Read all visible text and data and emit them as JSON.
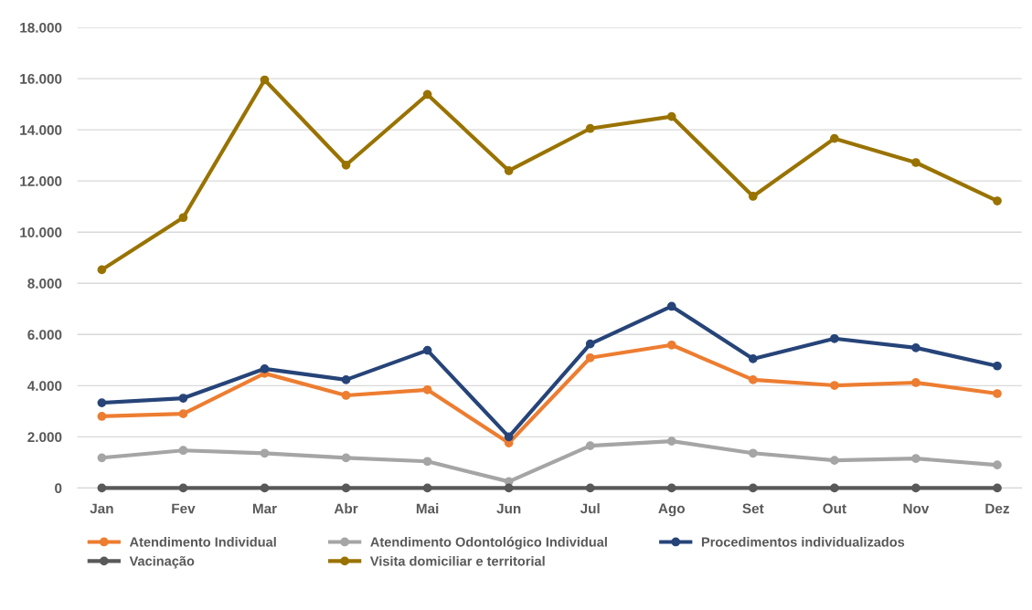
{
  "chart_data": {
    "type": "line",
    "categories": [
      "Jan",
      "Fev",
      "Mar",
      "Abr",
      "Mai",
      "Jun",
      "Jul",
      "Ago",
      "Set",
      "Out",
      "Nov",
      "Dez"
    ],
    "series": [
      {
        "name": "Atendimento Individual",
        "color": "#ed7d31",
        "values": [
          2800,
          2900,
          4480,
          3620,
          3840,
          1760,
          5090,
          5590,
          4230,
          4010,
          4120,
          3690
        ]
      },
      {
        "name": "Atendimento Odontológico Individual",
        "color": "#a5a5a5",
        "values": [
          1180,
          1470,
          1360,
          1180,
          1040,
          250,
          1650,
          1830,
          1360,
          1080,
          1150,
          900
        ]
      },
      {
        "name": "Procedimentos individualizados",
        "color": "#264478",
        "values": [
          3330,
          3510,
          4660,
          4230,
          5380,
          2000,
          5630,
          7100,
          5050,
          5840,
          5480,
          4770
        ]
      },
      {
        "name": "Vacinação",
        "color": "#595959",
        "values": [
          0,
          0,
          0,
          0,
          0,
          0,
          0,
          0,
          0,
          0,
          0,
          0
        ]
      },
      {
        "name": "Visita domiciliar e territorial",
        "color": "#997300",
        "values": [
          8530,
          10570,
          15950,
          12620,
          15380,
          12400,
          14050,
          14520,
          11400,
          13660,
          12720,
          11220
        ]
      }
    ],
    "ylim": [
      0,
      18000
    ],
    "yticks": [
      0,
      {
        "value": 2000,
        "label": "2.000"
      },
      {
        "value": 4000,
        "label": "4.000"
      },
      {
        "value": 6000,
        "label": "6.000"
      },
      {
        "value": 8000,
        "label": "8.000"
      },
      {
        "value": 10000,
        "label": "10.000"
      },
      {
        "value": 12000,
        "label": "12.000"
      },
      {
        "value": 14000,
        "label": "14.000"
      },
      {
        "value": 16000,
        "label": "16.000"
      },
      {
        "value": 18000,
        "label": "18.000"
      }
    ],
    "grid": "y",
    "legend": "bottom",
    "marker": "circle",
    "line_style": "solid"
  }
}
